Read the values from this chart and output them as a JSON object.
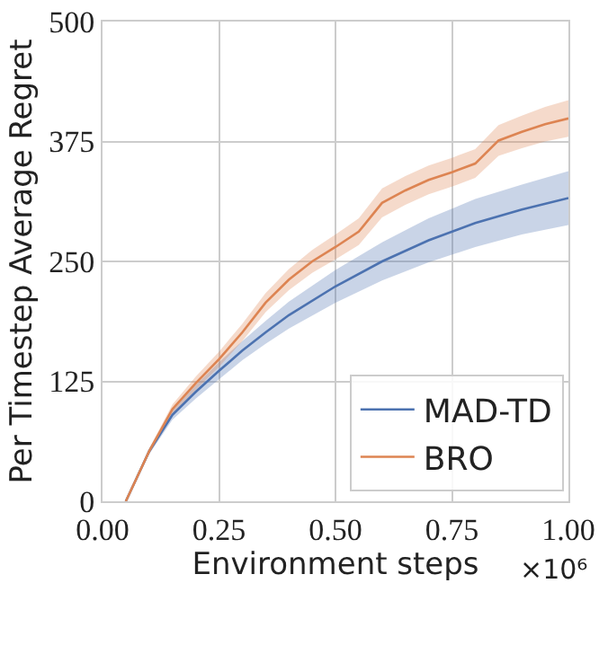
{
  "chart_data": {
    "type": "line",
    "xlabel": "Environment steps",
    "ylabel": "Per Timestep Average Regret",
    "annotations": [
      "×10⁶"
    ],
    "series": [
      {
        "name": "MAD-TD",
        "color": "#4c72b0",
        "x": [
          0.05,
          0.1,
          0.15,
          0.2,
          0.25,
          0.3,
          0.35,
          0.4,
          0.5,
          0.6,
          0.7,
          0.8,
          0.9,
          1.0
        ],
        "values": [
          0,
          52,
          90,
          114,
          136,
          157,
          176,
          194,
          224,
          250,
          272,
          290,
          304,
          316
        ],
        "lower": [
          0,
          49,
          85,
          107,
          127,
          147,
          164,
          180,
          207,
          230,
          249,
          265,
          278,
          288
        ],
        "upper": [
          0,
          55,
          95,
          121,
          145,
          167,
          188,
          208,
          241,
          270,
          295,
          315,
          330,
          344
        ]
      },
      {
        "name": "BRO",
        "color": "#dd8452",
        "x": [
          0.05,
          0.1,
          0.15,
          0.2,
          0.25,
          0.3,
          0.35,
          0.4,
          0.45,
          0.5,
          0.55,
          0.6,
          0.65,
          0.7,
          0.75,
          0.8,
          0.85,
          0.9,
          0.95,
          1.0
        ],
        "values": [
          0,
          52,
          96,
          123,
          148,
          176,
          207,
          231,
          250,
          265,
          281,
          311,
          324,
          335,
          343,
          352,
          376,
          385,
          393,
          399
        ],
        "lower": [
          0,
          49,
          91,
          116,
          140,
          167,
          197,
          220,
          238,
          252,
          267,
          296,
          309,
          320,
          328,
          337,
          360,
          368,
          375,
          380
        ],
        "upper": [
          0,
          55,
          101,
          130,
          156,
          185,
          217,
          242,
          262,
          278,
          295,
          326,
          339,
          350,
          358,
          367,
          392,
          402,
          411,
          418
        ]
      }
    ],
    "xlim": [
      0,
      1
    ],
    "xticks": [
      {
        "value": 0,
        "label": "0.00"
      },
      {
        "value": 0.25,
        "label": "0.25"
      },
      {
        "value": 0.5,
        "label": "0.50"
      },
      {
        "value": 0.75,
        "label": "0.75"
      },
      {
        "value": 1,
        "label": "1.00"
      }
    ],
    "ylim": [
      0,
      500
    ],
    "yticks": [
      0,
      125,
      250,
      375,
      500
    ],
    "grid": true,
    "legend": "bottom right",
    "line_style": "solid",
    "marker": "none"
  }
}
